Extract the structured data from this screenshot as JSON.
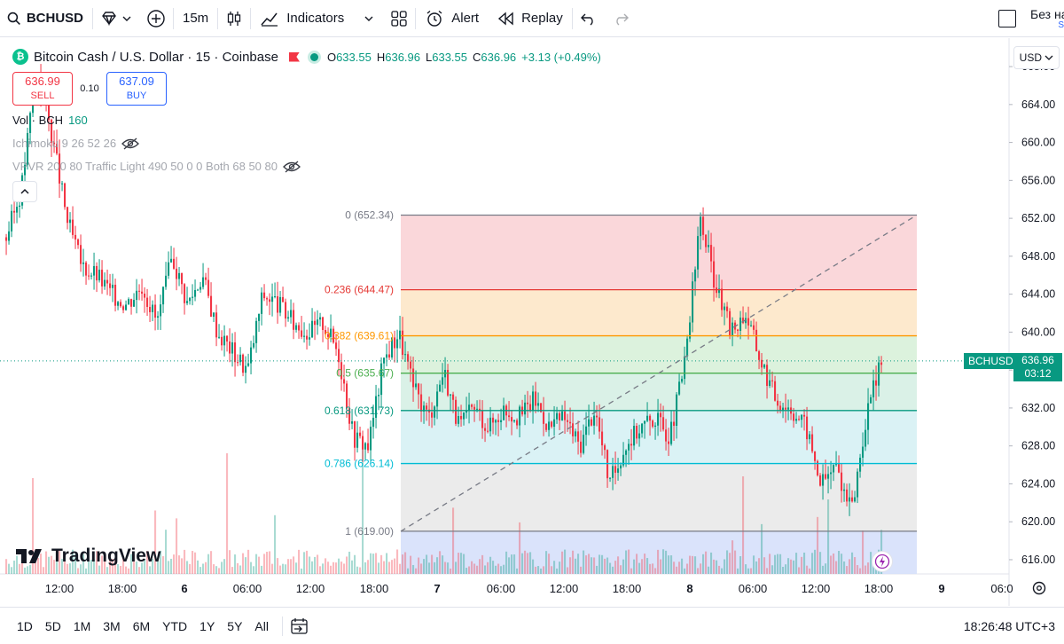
{
  "toolbar": {
    "symbol": "BCHUSD",
    "interval": "15m",
    "indicators_label": "Indicators",
    "alert_label": "Alert",
    "replay_label": "Replay",
    "layout_name": "Без на",
    "layout_sub": "S"
  },
  "legend": {
    "logo_letter": "₿",
    "title": "Bitcoin Cash / U.S. Dollar · 15 · Coinbase",
    "o_label": "O",
    "o_value": "633.55",
    "h_label": "H",
    "h_value": "636.96",
    "l_label": "L",
    "l_value": "633.55",
    "c_label": "C",
    "c_value": "636.96",
    "change": "+3.13 (+0.49%)"
  },
  "trade": {
    "sell_price": "636.99",
    "sell_label": "SELL",
    "spread": "0.10",
    "buy_price": "637.09",
    "buy_label": "BUY"
  },
  "indicators": {
    "volume": "Vol · BCH",
    "volume_value": "160",
    "ichimoku": "Ichimoku 9 26 52 26",
    "vpvr": "VPVR 200 80 Traffic Light 490 50 0 0 Both 68 50 80"
  },
  "currency": "USD",
  "last_price": {
    "symbol": "BCHUSD",
    "price": "636.96",
    "countdown": "03:12"
  },
  "watermark": "TradingView",
  "colors": {
    "up": "#089981",
    "down": "#f23645",
    "accent": "#2962ff"
  },
  "chart_data": {
    "type": "candlestick",
    "y_axis": [
      "668.00",
      "664.00",
      "660.00",
      "656.00",
      "652.00",
      "648.00",
      "644.00",
      "640.00",
      "636.00",
      "632.00",
      "628.00",
      "624.00",
      "620.00",
      "616.00"
    ],
    "x_axis": [
      "12:00",
      "18:00",
      "6",
      "06:00",
      "12:00",
      "18:00",
      "7",
      "06:00",
      "12:00",
      "18:00",
      "8",
      "06:00",
      "12:00",
      "18:00",
      "9",
      "06:0"
    ],
    "fibonacci": [
      {
        "ratio": "0",
        "price": "652.34",
        "label": "0 (652.34)"
      },
      {
        "ratio": "0.236",
        "price": "644.47",
        "label": "0.236 (644.47)"
      },
      {
        "ratio": "0.382",
        "price": "639.61",
        "label": "0.382 (639.61)"
      },
      {
        "ratio": "0.5",
        "price": "635.67",
        "label": "0.5 (635.67)"
      },
      {
        "ratio": "0.618",
        "price": "631.73",
        "label": "0.618 (631.73)"
      },
      {
        "ratio": "0.786",
        "price": "626.14",
        "label": "0.786 (626.14)"
      },
      {
        "ratio": "1",
        "price": "619.00",
        "label": "1 (619.00)"
      }
    ],
    "close_path": [
      650,
      655,
      668,
      661,
      652,
      647,
      646,
      644,
      643,
      645,
      641,
      648,
      643,
      646,
      640,
      638,
      636,
      644,
      643,
      641,
      640,
      641,
      638,
      629,
      628,
      637,
      640,
      634,
      631,
      636,
      630,
      632,
      630,
      632,
      631,
      633,
      630,
      631,
      628,
      632,
      624,
      628,
      630,
      631,
      629,
      637,
      652,
      645,
      640,
      642,
      637,
      633,
      632,
      630,
      624,
      626,
      621,
      631,
      637
    ],
    "price_range": [
      614.5,
      671
    ]
  },
  "time_ranges": [
    "1D",
    "5D",
    "1M",
    "3M",
    "6M",
    "YTD",
    "1Y",
    "5Y",
    "All"
  ],
  "clock": "18:26:48 UTC+3"
}
